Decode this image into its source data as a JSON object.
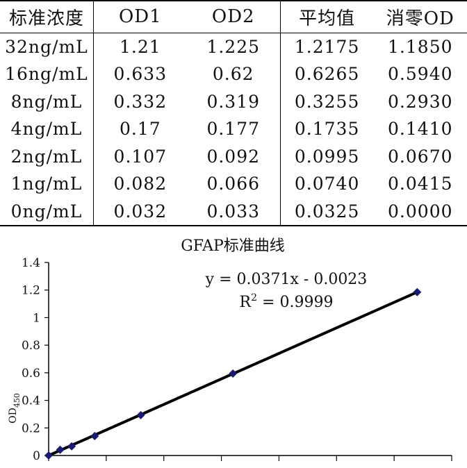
{
  "table": {
    "headers": [
      "标准浓度",
      "OD1",
      "OD2",
      "平均值",
      "消零OD"
    ],
    "rows": [
      [
        "32ng/mL",
        "1.21",
        "1.225",
        "1.2175",
        "1.1850"
      ],
      [
        "16ng/mL",
        "0.633",
        "0.62",
        "0.6265",
        "0.5940"
      ],
      [
        "8ng/mL",
        "0.332",
        "0.319",
        "0.3255",
        "0.2930"
      ],
      [
        "4ng/mL",
        "0.17",
        "0.177",
        "0.1735",
        "0.1410"
      ],
      [
        "2ng/mL",
        "0.107",
        "0.092",
        "0.0995",
        "0.0670"
      ],
      [
        "1ng/mL",
        "0.082",
        "0.066",
        "0.0740",
        "0.0415"
      ],
      [
        "0ng/mL",
        "0.032",
        "0.033",
        "0.0325",
        "0.0000"
      ]
    ]
  },
  "chart_data": {
    "type": "scatter",
    "title": "GFAP标准曲线",
    "equation": "y = 0.0371x - 0.0023",
    "r2_label": "R",
    "r2_sup": "2",
    "r2_value": " = 0.9999",
    "ylabel": "OD",
    "ylabel_sub": "450",
    "ylim": [
      0,
      1.4
    ],
    "xlim": [
      0,
      35
    ],
    "yticks": [
      "0",
      "0.2",
      "0.4",
      "0.6",
      "0.8",
      "1",
      "1.2",
      "1.4"
    ],
    "x": [
      0,
      1,
      2,
      4,
      8,
      16,
      32
    ],
    "y": [
      0.0,
      0.0415,
      0.067,
      0.141,
      0.293,
      0.594,
      1.185
    ],
    "trendline": {
      "slope": 0.0371,
      "intercept": -0.0023
    },
    "marker_color": "#1a1a6e",
    "line_color": "#000000",
    "grid": false
  }
}
